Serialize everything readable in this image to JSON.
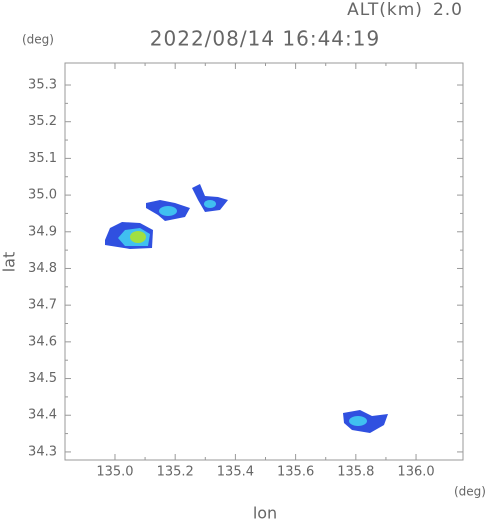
{
  "header": {
    "alt_label": "ALT(km)",
    "alt_value": "2.0",
    "timestamp": "2022/08/14 16:44:19"
  },
  "chart_data": {
    "type": "map",
    "x_label": "lon",
    "y_label": "lat",
    "x_unit": "(deg)",
    "y_unit": "(deg)",
    "xlim": [
      134.834,
      136.156
    ],
    "ylim": [
      34.278,
      35.36
    ],
    "xticks": [
      {
        "value": 135,
        "label": "135.0"
      },
      135.2,
      135.4,
      135.6,
      135.8,
      {
        "value": 136,
        "label": "136.0"
      }
    ],
    "yticks": [
      34.3,
      34.4,
      34.5,
      34.6,
      34.7,
      34.8,
      34.9,
      {
        "value": 35,
        "label": "35.0"
      },
      35.1,
      35.2,
      35.3
    ]
  }
}
